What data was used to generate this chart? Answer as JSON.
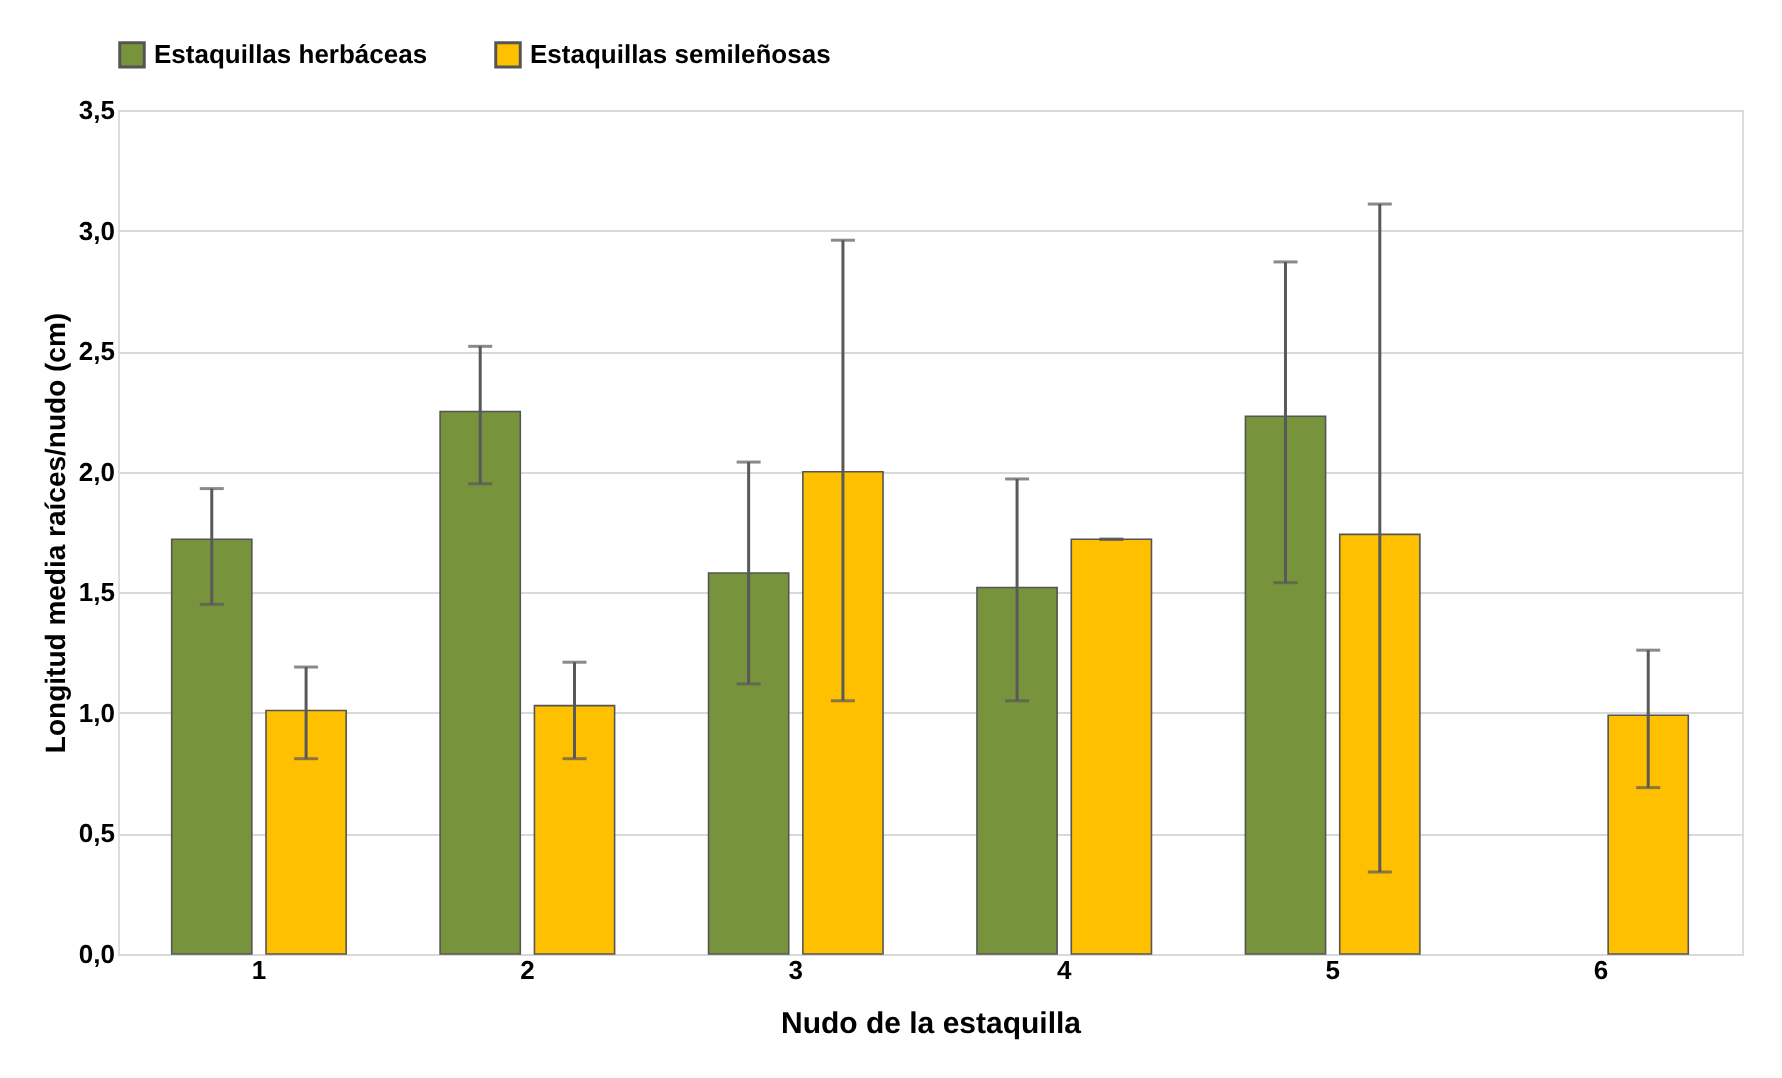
{
  "chart_data": {
    "type": "bar",
    "xlabel": "Nudo de la estaquilla",
    "ylabel": "Longitud media raíces/nudo (cm)",
    "categories": [
      "1",
      "2",
      "3",
      "4",
      "5",
      "6"
    ],
    "series": [
      {
        "name": "Estaquillas herbáceas",
        "color": "#77933c",
        "values": [
          1.72,
          2.25,
          1.58,
          1.52,
          2.23,
          null
        ],
        "errors": [
          [
            1.45,
            1.93
          ],
          [
            1.95,
            2.52
          ],
          [
            1.12,
            2.04
          ],
          [
            1.05,
            1.97
          ],
          [
            1.54,
            2.87
          ],
          null
        ]
      },
      {
        "name": "Estaquillas semileñosas",
        "color": "#ffc000",
        "values": [
          1.01,
          1.03,
          2.0,
          1.72,
          1.74,
          0.99
        ],
        "errors": [
          [
            0.81,
            1.19
          ],
          [
            0.81,
            1.21
          ],
          [
            1.05,
            2.96
          ],
          [
            1.72,
            1.72
          ],
          [
            0.34,
            3.11
          ],
          [
            0.69,
            1.26
          ]
        ]
      }
    ],
    "ylim": [
      0,
      3.5
    ],
    "yticks": [
      {
        "value": 0,
        "label": "0,0"
      },
      {
        "value": 0.5,
        "label": "0,5"
      },
      {
        "value": 1,
        "label": "1,0"
      },
      {
        "value": 1.5,
        "label": "1,5"
      },
      {
        "value": 2,
        "label": "2,0"
      },
      {
        "value": 2.5,
        "label": "2,5"
      },
      {
        "value": 3,
        "label": "3,0"
      },
      {
        "value": 3.5,
        "label": "3,5"
      }
    ],
    "grid": "y",
    "legend": "top"
  }
}
